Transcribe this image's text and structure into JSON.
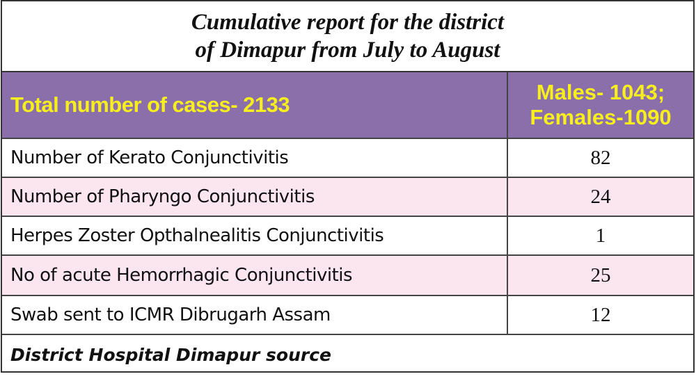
{
  "title": {
    "line1": "Cumulative report for the district",
    "line2": "of Dimapur from July to August"
  },
  "header": {
    "total": "Total number of cases- 2133",
    "males": "Males- 1043;",
    "females": "Females-1090"
  },
  "rows": [
    {
      "label": "Number of Kerato Conjunctivitis",
      "value": "82"
    },
    {
      "label": "Number of Pharyngo Conjunctivitis",
      "value": "24"
    },
    {
      "label": "Herpes Zoster Opthalnealitis Conjunctivitis",
      "value": "1"
    },
    {
      "label": "No of acute Hemorrhagic Conjunctivitis",
      "value": "25"
    },
    {
      "label": "Swab sent to ICMR Dibrugarh Assam",
      "value": "12"
    }
  ],
  "footer": "District Hospital Dimapur source",
  "colors": {
    "header_bg": "#8a6faa",
    "header_text": "#f7ee1e",
    "alt_row_bg": "#fbe5ef"
  }
}
